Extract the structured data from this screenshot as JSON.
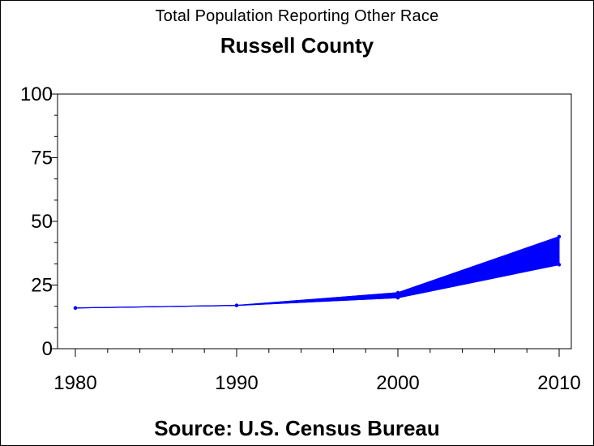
{
  "chart_data": {
    "type": "line",
    "title": "Total Population Reporting Other Race",
    "subtitle": "Russell County",
    "source": "Source: U.S. Census Bureau",
    "x": [
      1980,
      1990,
      2000,
      2010
    ],
    "xticks": [
      "1980",
      "1990",
      "2000",
      "2010"
    ],
    "yticks": [
      "0",
      "25",
      "50",
      "75",
      "100"
    ],
    "xlim": [
      1980,
      2010
    ],
    "ylim": [
      0,
      100
    ],
    "series": [
      {
        "values_upper": [
          16,
          17,
          22,
          44
        ],
        "values_lower": [
          16,
          17,
          20,
          33
        ]
      }
    ],
    "color": "#0000ff",
    "grid": false
  }
}
